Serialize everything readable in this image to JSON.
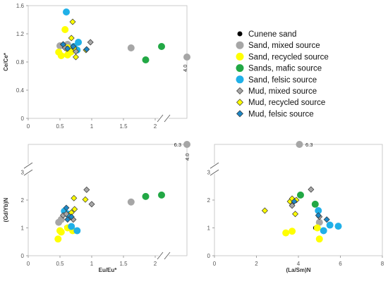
{
  "legend": [
    {
      "label": "Cunene sand",
      "marker": "circle",
      "color": "#000000"
    },
    {
      "label": "Sand, mixed source",
      "marker": "circle",
      "color": "#a6a6a6"
    },
    {
      "label": "Sand, recycled source",
      "marker": "circle",
      "color": "#ffff00"
    },
    {
      "label": "Sands, mafic source",
      "marker": "circle",
      "color": "#22a845"
    },
    {
      "label": "Sand, felsic source",
      "marker": "circle",
      "color": "#20b0e8"
    },
    {
      "label": "Mud, mixed source",
      "marker": "diamond",
      "color": "#a6a6a6"
    },
    {
      "label": "Mud, recycled source",
      "marker": "diamond",
      "color": "#ffff00"
    },
    {
      "label": "Mud, felsic source",
      "marker": "diamond",
      "color": "#1d86c4"
    }
  ],
  "chart_data": [
    {
      "type": "scatter",
      "ylabel": "Ce/Ce*",
      "xlabel": "",
      "xlim": [
        0,
        2.5
      ],
      "ylim": [
        0,
        1.6
      ],
      "xticks": [
        "0",
        "0.5",
        "1",
        "1.5",
        "2"
      ],
      "yticks": [
        "0",
        "0.4",
        "0.8",
        "1.2",
        "1.6"
      ],
      "x_axis_break": true,
      "annotations": [
        {
          "text": "4.0",
          "x": 2.5,
          "y": 0.86
        }
      ],
      "series": [
        {
          "name": "Cunene sand",
          "points": [
            [
              0.62,
              0.97
            ]
          ]
        },
        {
          "name": "Sand, mixed source",
          "points": [
            [
              0.5,
              1.03
            ],
            [
              0.62,
              1.05
            ],
            [
              0.7,
              0.98
            ],
            [
              1.62,
              1.0
            ],
            [
              2.5,
              0.87
            ]
          ]
        },
        {
          "name": "Sand, recycled source",
          "points": [
            [
              0.48,
              0.94
            ],
            [
              0.52,
              0.89
            ],
            [
              0.58,
              1.26
            ],
            [
              0.62,
              0.9
            ],
            [
              0.67,
              0.94
            ],
            [
              0.62,
              1.0
            ]
          ]
        },
        {
          "name": "Sands, mafic source",
          "points": [
            [
              1.85,
              0.83
            ],
            [
              2.1,
              1.02
            ]
          ]
        },
        {
          "name": "Sand, felsic source",
          "points": [
            [
              0.6,
              1.51
            ],
            [
              0.72,
              1.02
            ],
            [
              0.77,
              0.97
            ],
            [
              0.79,
              1.08
            ]
          ]
        },
        {
          "name": "Mud, mixed source",
          "points": [
            [
              0.55,
              1.05
            ],
            [
              0.58,
              1.0
            ],
            [
              0.75,
              0.95
            ],
            [
              0.98,
              1.08
            ]
          ]
        },
        {
          "name": "Mud, recycled source",
          "points": [
            [
              0.68,
              1.14
            ],
            [
              0.7,
              1.37
            ],
            [
              0.72,
              1.0
            ],
            [
              0.75,
              0.87
            ],
            [
              0.91,
              0.97
            ]
          ]
        },
        {
          "name": "Mud, felsic source",
          "points": [
            [
              0.55,
              1.05
            ],
            [
              0.62,
              0.99
            ],
            [
              0.71,
              1.02
            ],
            [
              0.92,
              0.98
            ]
          ]
        }
      ]
    },
    {
      "type": "scatter",
      "ylabel": "(Gd/Yb)N",
      "xlabel": "Eu/Eu*",
      "xlim": [
        0,
        2.5
      ],
      "ylim": [
        0,
        4
      ],
      "xticks": [
        "0",
        "0.5",
        "1",
        "1.5",
        "2"
      ],
      "yticks": [
        "0",
        "1",
        "2",
        "3"
      ],
      "x_axis_break": true,
      "y_axis_break": true,
      "annotations": [
        {
          "text": "6.3",
          "x": 2.5,
          "y": 4.0
        },
        {
          "text": "4.0",
          "x": 2.5,
          "y": 3.35
        }
      ],
      "series": [
        {
          "name": "Cunene sand",
          "points": [
            [
              0.6,
              1.02
            ]
          ]
        },
        {
          "name": "Sand, mixed source",
          "points": [
            [
              0.48,
              1.2
            ],
            [
              0.52,
              1.3
            ],
            [
              1.62,
              1.93
            ],
            [
              2.5,
              4.0
            ]
          ]
        },
        {
          "name": "Sand, recycled source",
          "points": [
            [
              0.47,
              0.6
            ],
            [
              0.52,
              0.85
            ],
            [
              0.5,
              0.9
            ],
            [
              0.62,
              1.0
            ],
            [
              0.7,
              0.9
            ]
          ]
        },
        {
          "name": "Sands, mafic source",
          "points": [
            [
              1.85,
              2.13
            ],
            [
              2.1,
              2.18
            ]
          ]
        },
        {
          "name": "Sand, felsic source",
          "points": [
            [
              0.57,
              1.6
            ],
            [
              0.62,
              1.5
            ],
            [
              0.68,
              1.05
            ],
            [
              0.77,
              0.9
            ]
          ]
        },
        {
          "name": "Mud, mixed source",
          "points": [
            [
              0.55,
              1.45
            ],
            [
              0.6,
              1.5
            ],
            [
              0.92,
              2.37
            ],
            [
              1.0,
              1.85
            ],
            [
              0.71,
              1.3
            ]
          ]
        },
        {
          "name": "Mud, recycled source",
          "points": [
            [
              0.68,
              1.55
            ],
            [
              0.72,
              2.07
            ],
            [
              0.73,
              1.67
            ],
            [
              0.9,
              2.02
            ]
          ]
        },
        {
          "name": "Mud, felsic source",
          "points": [
            [
              0.6,
              1.72
            ],
            [
              0.62,
              1.3
            ],
            [
              0.68,
              1.4
            ]
          ]
        }
      ]
    },
    {
      "type": "scatter",
      "ylabel": "",
      "xlabel": "(La/Sm)N",
      "xlim": [
        0,
        8
      ],
      "ylim": [
        0,
        4
      ],
      "xticks": [
        "0",
        "2",
        "4",
        "6",
        "8"
      ],
      "yticks": [
        "0",
        "1",
        "2",
        "3"
      ],
      "y_axis_break": true,
      "annotations": [
        {
          "text": "6.3",
          "x": 4.2,
          "y": 4.0
        }
      ],
      "series": [
        {
          "name": "Cunene sand",
          "points": [
            [
              4.8,
              1.0
            ]
          ]
        },
        {
          "name": "Sand, mixed source",
          "points": [
            [
              3.7,
              1.95
            ],
            [
              5.0,
              1.2
            ],
            [
              4.05,
              4.0
            ]
          ]
        },
        {
          "name": "Sand, recycled source",
          "points": [
            [
              3.4,
              0.82
            ],
            [
              3.7,
              0.88
            ],
            [
              4.9,
              1.0
            ],
            [
              5.0,
              0.6
            ]
          ]
        },
        {
          "name": "Sands, mafic source",
          "points": [
            [
              4.1,
              2.18
            ],
            [
              4.8,
              1.85
            ]
          ]
        },
        {
          "name": "Sand, felsic source",
          "points": [
            [
              4.95,
              1.62
            ],
            [
              5.2,
              0.9
            ],
            [
              5.5,
              1.1
            ],
            [
              5.9,
              1.06
            ]
          ]
        },
        {
          "name": "Mud, mixed source",
          "points": [
            [
              4.6,
              2.38
            ],
            [
              3.7,
              1.8
            ],
            [
              5.0,
              1.4
            ]
          ]
        },
        {
          "name": "Mud, recycled source",
          "points": [
            [
              2.4,
              1.62
            ],
            [
              3.6,
              1.95
            ],
            [
              3.7,
              2.05
            ],
            [
              3.85,
              1.5
            ],
            [
              3.9,
              2.0
            ]
          ]
        },
        {
          "name": "Mud, felsic source",
          "points": [
            [
              3.8,
              1.95
            ],
            [
              4.95,
              1.45
            ],
            [
              5.35,
              1.3
            ]
          ]
        }
      ]
    }
  ]
}
